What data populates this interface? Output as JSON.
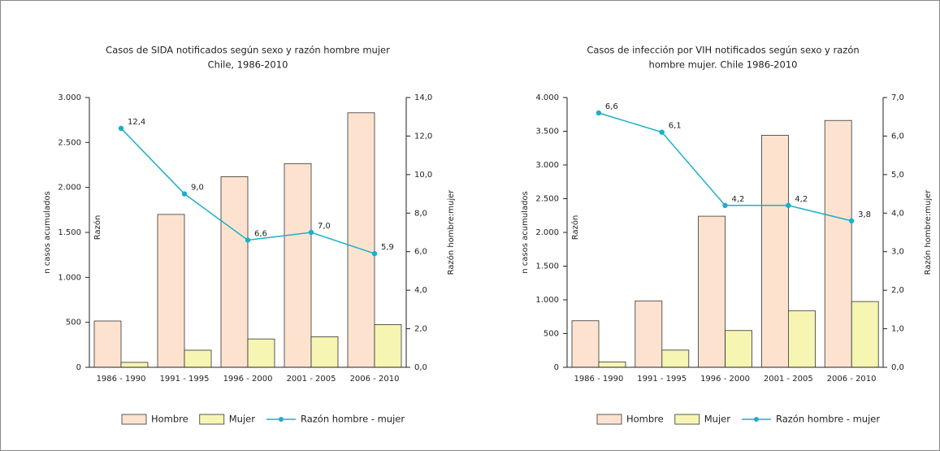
{
  "chart_data": [
    {
      "type": "bar",
      "title": [
        "Casos de SIDA notificados según sexo y razón hombre mujer",
        "Chile, 1986-2010"
      ],
      "ylabel": "n  casos acumulados",
      "y2label": "Razón hombre:mujer",
      "annotations": [
        "Razón"
      ],
      "categories": [
        "1986 - 1990",
        "1991 - 1995",
        "1996 - 2000",
        "2001 - 2005",
        "2006 - 2010"
      ],
      "series": [
        {
          "name": "Hombre",
          "color": "#fde3cf",
          "values": [
            515,
            1700,
            2120,
            2265,
            2830
          ]
        },
        {
          "name": "Mujer",
          "color": "#f6f5b1",
          "values": [
            55,
            190,
            315,
            340,
            475
          ]
        },
        {
          "name": "Razón hombre - mujer",
          "type": "line",
          "axis": "y2",
          "color": "#1ab0c8",
          "values": [
            12.4,
            9.0,
            6.6,
            7.0,
            5.9
          ],
          "value_labels": [
            "12,4",
            "9,0",
            "6,6",
            "7,0",
            "5,9"
          ]
        }
      ],
      "ylim": [
        0,
        3000
      ],
      "yticks": [
        0,
        500,
        {
          "value": 1000,
          "label": "1.000"
        },
        {
          "value": 1500,
          "label": "1.500"
        },
        {
          "value": 2000,
          "label": "2.000"
        },
        {
          "value": 2500,
          "label": "2.500"
        },
        {
          "value": 3000,
          "label": "3.000"
        }
      ],
      "y2lim": [
        0,
        14
      ],
      "y2ticks": [
        {
          "value": 0,
          "label": "0,0"
        },
        {
          "value": 2,
          "label": "2,0"
        },
        {
          "value": 4,
          "label": "4,0"
        },
        {
          "value": 6,
          "label": "6,0"
        },
        {
          "value": 8,
          "label": "8,0"
        },
        {
          "value": 10,
          "label": "10,0"
        },
        {
          "value": 12,
          "label": "12,0"
        },
        {
          "value": 14,
          "label": "14,0"
        }
      ],
      "legend": "bottom"
    },
    {
      "type": "bar",
      "title": [
        "Casos de infección por VIH notificados según sexo y razón",
        "hombre mujer. Chile 1986-2010"
      ],
      "ylabel": "n  casos acumulados",
      "y2label": "Razón hombre:mujer",
      "annotations": [
        "Razón"
      ],
      "categories": [
        "1986 - 1990",
        "1991 - 1995",
        "1996 - 2000",
        "2001 - 2005",
        "2006 - 2010"
      ],
      "series": [
        {
          "name": "Hombre",
          "color": "#fde3cf",
          "values": [
            690,
            985,
            2240,
            3440,
            3660
          ]
        },
        {
          "name": "Mujer",
          "color": "#f6f5b1",
          "values": [
            80,
            255,
            545,
            840,
            975
          ]
        },
        {
          "name": "Razón hombre - mujer",
          "type": "line",
          "axis": "y2",
          "color": "#1ab0c8",
          "values": [
            6.6,
            6.1,
            4.2,
            4.2,
            3.8
          ],
          "value_labels": [
            "6,6",
            "6,1",
            "4,2",
            "4,2",
            "3,8"
          ]
        }
      ],
      "ylim": [
        0,
        4000
      ],
      "yticks": [
        0,
        500,
        {
          "value": 1000,
          "label": "1.000"
        },
        {
          "value": 1500,
          "label": "1.500"
        },
        {
          "value": 2000,
          "label": "2.000"
        },
        {
          "value": 2500,
          "label": "2.500"
        },
        {
          "value": 3000,
          "label": "3.000"
        },
        {
          "value": 3500,
          "label": "3.500"
        },
        {
          "value": 4000,
          "label": "4.000"
        }
      ],
      "y2lim": [
        0,
        7
      ],
      "y2ticks": [
        {
          "value": 0,
          "label": "0,0"
        },
        {
          "value": 1,
          "label": "1,0"
        },
        {
          "value": 2,
          "label": "2,0"
        },
        {
          "value": 3,
          "label": "3,0"
        },
        {
          "value": 4,
          "label": "4,0"
        },
        {
          "value": 5,
          "label": "5,0"
        },
        {
          "value": 6,
          "label": "6,0"
        },
        {
          "value": 7,
          "label": "7,0"
        }
      ],
      "legend": "bottom"
    }
  ]
}
